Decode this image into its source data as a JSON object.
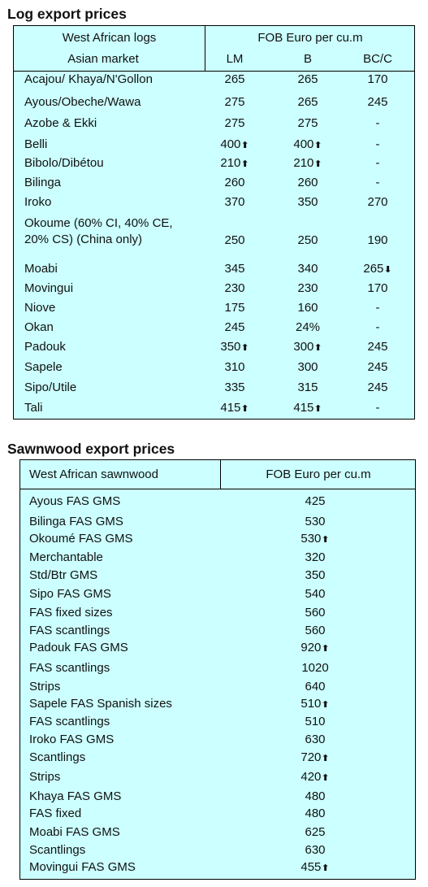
{
  "log_section": {
    "title": "Log export prices",
    "header": {
      "region": "West African logs",
      "market": "Asian market",
      "price_unit": "FOB Euro per cu.m",
      "col_lm": "LM",
      "col_b": "B",
      "col_bcc": "BC/C"
    },
    "rows": [
      {
        "name": "Acajou/ Khaya/N'Gollon",
        "lm": "265",
        "b": "265",
        "bcc": "170"
      },
      {
        "name": "Ayous/Obeche/Wawa",
        "lm": "275",
        "b": "265",
        "bcc": "245"
      },
      {
        "name": "Azobe & Ekki",
        "lm": "275",
        "b": "275",
        "bcc": "-"
      },
      {
        "name": "Belli",
        "lm": "400",
        "lm_trend": "up",
        "b": "400",
        "b_trend": "up",
        "bcc": "-"
      },
      {
        "name": "Bibolo/Dibétou",
        "lm": "210",
        "lm_trend": "up",
        "b": "210",
        "b_trend": "up",
        "bcc": "-"
      },
      {
        "name": "Bilinga",
        "lm": "260",
        "b": "260",
        "bcc": "-"
      },
      {
        "name": "Iroko",
        "lm": "370",
        "b": "350",
        "bcc": "270"
      },
      {
        "name": "Okoume (60% CI, 40% CE, 20% CS) (China only)",
        "lm": "250",
        "b": "250",
        "bcc": "190"
      },
      {
        "name": "Moabi",
        "lm": "345",
        "b": "340",
        "bcc": "265",
        "bcc_trend": "down"
      },
      {
        "name": "Movingui",
        "lm": "230",
        "b": "230",
        "bcc": "170"
      },
      {
        "name": "Niove",
        "lm": "175",
        "b": "160",
        "bcc": "-"
      },
      {
        "name": "Okan",
        "lm": "245",
        "b": "24%",
        "bcc": "-"
      },
      {
        "name": "Padouk",
        "lm": "350",
        "lm_trend": "up",
        "b": "300",
        "b_trend": "up",
        "bcc": "245"
      },
      {
        "name": "Sapele",
        "lm": "310",
        "b": "300",
        "bcc": "245"
      },
      {
        "name": "Sipo/Utile",
        "lm": "335",
        "b": "315",
        "bcc": "245"
      },
      {
        "name": "Tali",
        "lm": "415",
        "lm_trend": "up",
        "b": "415",
        "b_trend": "up",
        "bcc": "-"
      }
    ]
  },
  "sawn_section": {
    "title": "Sawnwood export prices",
    "header": {
      "region": "West African sawnwood",
      "price_unit": "FOB Euro per cu.m"
    },
    "rows": [
      {
        "name": "Ayous FAS GMS",
        "price": "425"
      },
      {
        "name": "Bilinga FAS GMS",
        "price": "530"
      },
      {
        "name": "Okoumé FAS GMS",
        "price": "530",
        "trend": "up"
      },
      {
        "name": "Merchantable",
        "price": "320"
      },
      {
        "name": "Std/Btr GMS",
        "price": "350"
      },
      {
        "name": "Sipo FAS GMS",
        "price": "540"
      },
      {
        "name": "FAS fixed sizes",
        "price": "560"
      },
      {
        "name": "FAS scantlings",
        "price": "560"
      },
      {
        "name": "Padouk FAS GMS",
        "price": "920",
        "trend": "up"
      },
      {
        "name": "FAS scantlings",
        "price": "1020"
      },
      {
        "name": "Strips",
        "price": "640"
      },
      {
        "name": "Sapele FAS Spanish sizes",
        "price": "510",
        "trend": "up"
      },
      {
        "name": "FAS scantlings",
        "price": "510"
      },
      {
        "name": "Iroko FAS GMS",
        "price": "630"
      },
      {
        "name": "Scantlings",
        "price": "720",
        "trend": "up"
      },
      {
        "name": "Strips",
        "price": "420",
        "trend": "up"
      },
      {
        "name": "Khaya FAS GMS",
        "price": "480"
      },
      {
        "name": "FAS fixed",
        "price": "480"
      },
      {
        "name": "Moabi FAS GMS",
        "price": "625"
      },
      {
        "name": "Scantlings",
        "price": "630"
      },
      {
        "name": "Movingui FAS GMS",
        "price": "455",
        "trend": "up"
      }
    ]
  },
  "colors": {
    "table_bg": "#ccffff",
    "border": "#000000"
  },
  "icons": {
    "up": "arrow-up-icon",
    "down": "arrow-down-icon"
  }
}
